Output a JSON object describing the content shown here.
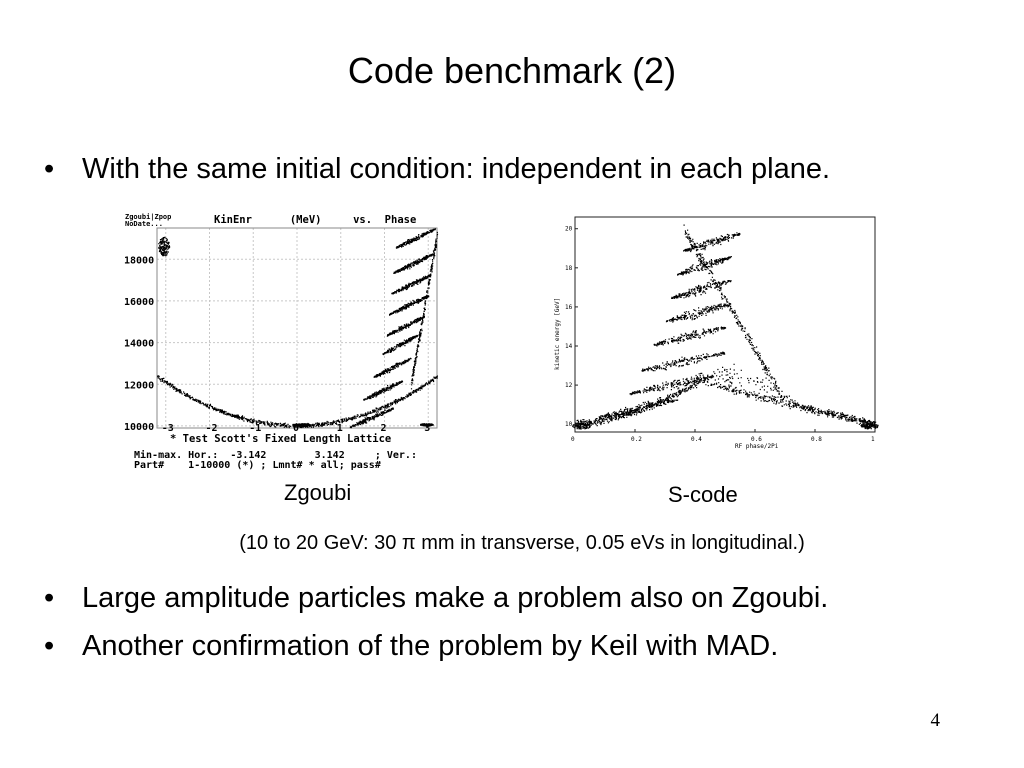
{
  "slide": {
    "title": "Code benchmark (2)",
    "bullets": [
      "With the same initial condition: independent in each plane.",
      "Large amplitude particles make a problem also on Zgoubi.",
      "Another confirmation of the problem by Keil with MAD."
    ],
    "captions": {
      "left": "Zgoubi",
      "right": "S-code"
    },
    "note": "(10 to 20 GeV: 30 π mm in transverse, 0.05 eVs in longitudinal.)",
    "page_number": "4"
  },
  "chart_data": [
    {
      "type": "scatter",
      "title": "KinEnr      (MeV)     vs.  Phase",
      "corner_label": [
        "Zgoubi|Zpop",
        "NoDate..."
      ],
      "x_ticks": [
        "-3",
        "-2",
        "-1",
        "0",
        "1",
        "2",
        "3"
      ],
      "y_ticks": [
        "10000",
        "12000",
        "14000",
        "16000",
        "18000"
      ],
      "xlim": [
        -3.2,
        3.2
      ],
      "ylim": [
        9900,
        19500
      ],
      "grid": true,
      "footer": [
        "* Test Scott's Fixed Length Lattice",
        "Min-max. Hor.:  -3.142        3.142     ; Ver.:",
        "Part#    1-10000 (*) ; Lmnt# * all; pass#"
      ],
      "series_color": "#000000"
    },
    {
      "type": "scatter",
      "xlabel": "RF phase/2Pi",
      "ylabel": "kinetic energy [GeV]",
      "x_ticks": [
        "0",
        "0.2",
        "0.4",
        "0.6",
        "0.8",
        "1"
      ],
      "y_ticks": [
        "10",
        "12",
        "14",
        "16",
        "18",
        "20"
      ],
      "xlim": [
        0,
        1
      ],
      "ylim": [
        9.6,
        20.6
      ],
      "grid": false,
      "series_color": "#000000"
    }
  ]
}
